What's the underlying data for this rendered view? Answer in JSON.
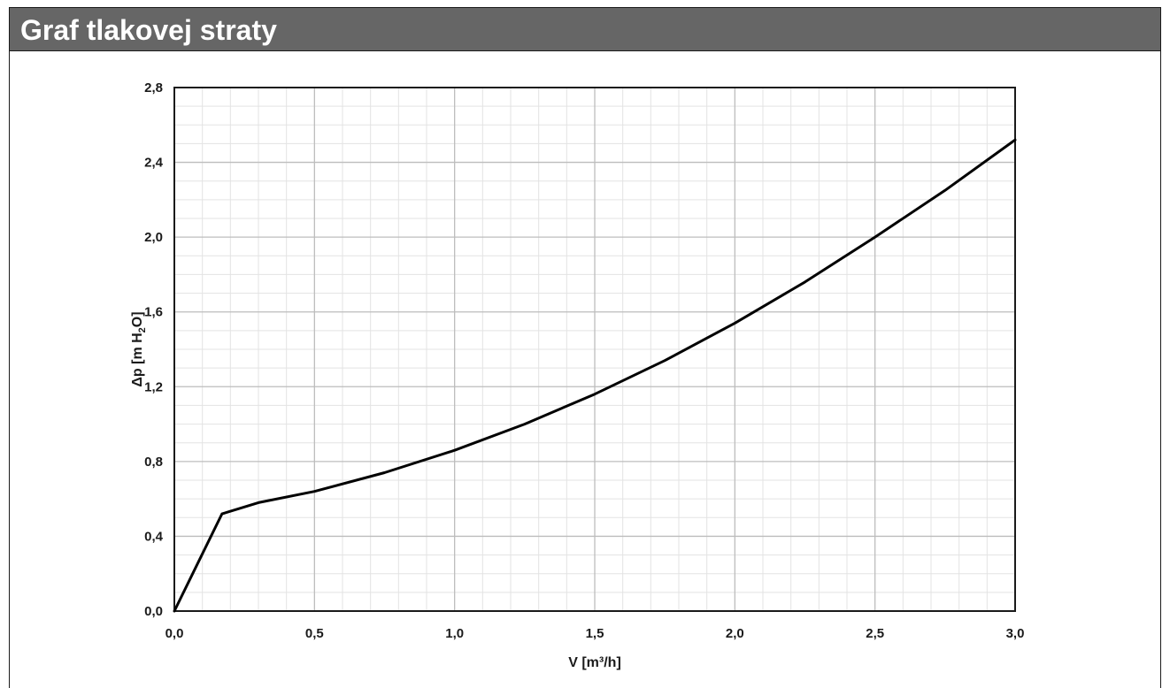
{
  "header": {
    "title": "Graf tlakovej straty"
  },
  "chart_data": {
    "type": "line",
    "title": "",
    "xlabel": "V [m³/h]",
    "ylabel_main": "Δp [m H",
    "ylabel_sub": "2",
    "ylabel_tail": "O]",
    "xlim": [
      0,
      3
    ],
    "ylim": [
      0,
      2.8
    ],
    "x_ticks": [
      0,
      0.5,
      1.0,
      1.5,
      2.0,
      2.5,
      3.0
    ],
    "x_tick_labels": [
      "0,0",
      "0,5",
      "1,0",
      "1,5",
      "2,0",
      "2,5",
      "3,0"
    ],
    "y_ticks": [
      0,
      0.4,
      0.8,
      1.2,
      1.6,
      2.0,
      2.4,
      2.8
    ],
    "y_tick_labels": [
      "0,0",
      "0,4",
      "0,8",
      "1,2",
      "1,6",
      "2,0",
      "2,4",
      "2,8"
    ],
    "grid": true,
    "minor_grid": true,
    "legend": "none",
    "colors": {
      "line": "#000000",
      "major_grid": "#bdbdbd",
      "minor_grid": "#e3e3e3",
      "header_bg": "#666666",
      "header_text": "#ffffff"
    },
    "series": [
      {
        "x": [
          0.0,
          0.17,
          0.3,
          0.5,
          0.75,
          1.0,
          1.25,
          1.5,
          1.75,
          2.0,
          2.25,
          2.5,
          2.75,
          3.0
        ],
        "y": [
          0.0,
          0.52,
          0.58,
          0.64,
          0.74,
          0.86,
          1.0,
          1.16,
          1.34,
          1.54,
          1.76,
          2.0,
          2.25,
          2.52
        ]
      }
    ]
  }
}
